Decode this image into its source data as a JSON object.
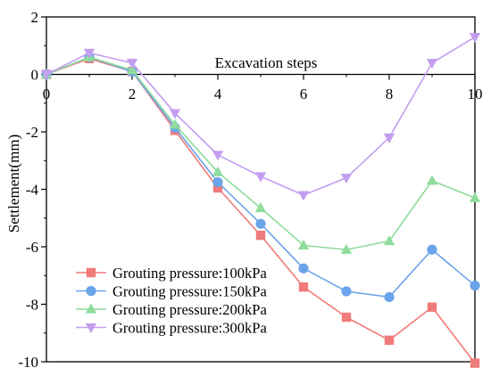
{
  "chart_data": {
    "type": "line",
    "xlabel": "Excavation steps",
    "ylabel": "Settlement(mm)",
    "xlim": [
      0,
      10
    ],
    "ylim": [
      -10,
      2
    ],
    "x_ticks": [
      0,
      2,
      4,
      6,
      8,
      10
    ],
    "y_ticks": [
      2,
      0,
      -2,
      -4,
      -6,
      -8,
      -10
    ],
    "grid": false,
    "legend_position": "bottom-left",
    "x": [
      0,
      1,
      2,
      3,
      4,
      5,
      6,
      7,
      8,
      9,
      10
    ],
    "series": [
      {
        "name": "Grouting pressure:100kPa",
        "color": "#f07b7b",
        "marker": "square",
        "values": [
          0,
          0.55,
          0.1,
          -1.95,
          -3.95,
          -5.6,
          -7.4,
          -8.45,
          -9.25,
          -8.1,
          -10.05
        ]
      },
      {
        "name": "Grouting pressure:150kPa",
        "color": "#6aa4ea",
        "marker": "circle",
        "values": [
          0,
          0.6,
          0.1,
          -1.85,
          -3.75,
          -5.2,
          -6.75,
          -7.55,
          -7.75,
          -6.1,
          -7.35
        ]
      },
      {
        "name": "Grouting pressure:200kPa",
        "color": "#8fdc9c",
        "marker": "triangle-up",
        "values": [
          0,
          0.6,
          0.15,
          -1.75,
          -3.4,
          -4.65,
          -5.95,
          -6.1,
          -5.8,
          -3.7,
          -4.3
        ]
      },
      {
        "name": "Grouting pressure:300kPa",
        "color": "#c39ef0",
        "marker": "triangle-down",
        "values": [
          0,
          0.75,
          0.4,
          -1.35,
          -2.8,
          -3.55,
          -4.2,
          -3.6,
          -2.2,
          0.4,
          1.3
        ]
      }
    ]
  }
}
